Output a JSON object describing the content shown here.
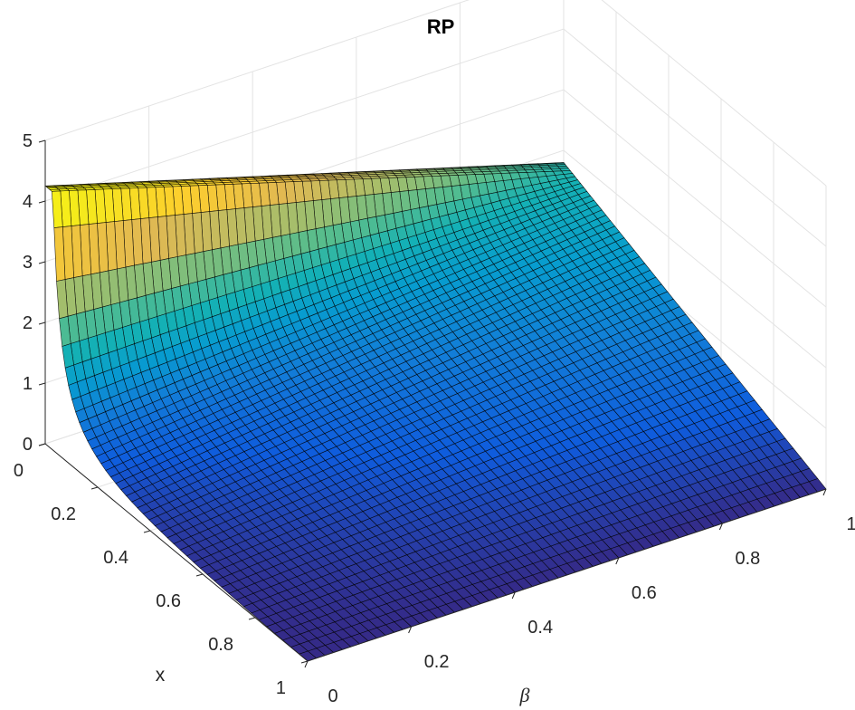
{
  "chart_data": {
    "type": "surface",
    "title": "RP",
    "xlabel": "β",
    "ylabel": "x",
    "zlabel": "",
    "x_axis": {
      "variable": "β",
      "range": [
        0,
        1
      ],
      "ticks": [
        "0",
        "0.2",
        "0.4",
        "0.6",
        "0.8",
        "1"
      ]
    },
    "y_axis": {
      "variable": "x",
      "range": [
        0,
        1
      ],
      "ticks": [
        "0",
        "0.2",
        "0.4",
        "0.6",
        "0.8",
        "1"
      ]
    },
    "z_axis": {
      "range": [
        0,
        5
      ],
      "ticks": [
        "0",
        "1",
        "2",
        "3",
        "4",
        "5"
      ]
    },
    "grid": true,
    "colormap": "parula",
    "sample_points": [
      {
        "beta": 0,
        "x": 0,
        "z": 4.25
      },
      {
        "beta": 0,
        "x": 0.02,
        "z": 2.0
      },
      {
        "beta": 0,
        "x": 0.05,
        "z": 1.2
      },
      {
        "beta": 0,
        "x": 0.2,
        "z": 0.45
      },
      {
        "beta": 0,
        "x": 1,
        "z": 0
      },
      {
        "beta": 1,
        "x": 0,
        "z": 1.8
      }
    ]
  }
}
